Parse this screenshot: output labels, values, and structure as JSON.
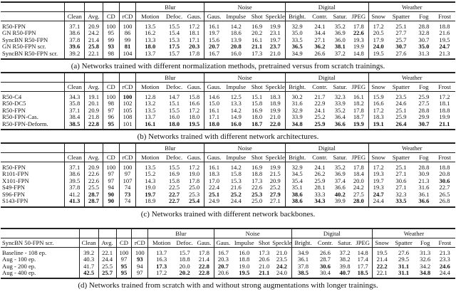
{
  "groups": [
    {
      "label": "Blur",
      "span": 3
    },
    {
      "label": "Noise",
      "span": 4
    },
    {
      "label": "Digital",
      "span": 4
    },
    {
      "label": "Weather",
      "span": 4
    }
  ],
  "columns": [
    "Clean",
    "Avg.",
    "CD",
    "rCD",
    "Motion",
    "Defoc.",
    "Gaus.",
    "Gaus.",
    "Impulse",
    "Shot",
    "Speckle",
    "Bright.",
    "Contr.",
    "Satur.",
    "JPEG",
    "Snow",
    "Spatter",
    "Fog",
    "Frost"
  ],
  "tables": [
    {
      "first_header": "",
      "caption": "(a) Networks trained with different normalization methods, pretrained versus from scratch trainings.",
      "rows": [
        {
          "name": "R50-FPN",
          "values": [
            "37.1",
            "20.9",
            "100",
            "100",
            "13.5",
            "15.5",
            "17.2",
            "16.1",
            "14.2",
            "16.9",
            "19.9",
            "32.9",
            "24.1",
            "35.2",
            "17.8",
            "17.2",
            "25.1",
            "28.8",
            "18.8"
          ],
          "bold": []
        },
        {
          "name": "GN R50-FPN",
          "values": [
            "38.6",
            "24.2",
            "95",
            "86",
            "16.2",
            "15.4",
            "18.1",
            "19.7",
            "18.6",
            "20.2",
            "23.1",
            "35.0",
            "34.4",
            "36.9",
            "22.6",
            "20.5",
            "27.7",
            "32.8",
            "21.6"
          ],
          "bold": [
            14
          ]
        },
        {
          "name": "SyncBN R50-FPN",
          "values": [
            "37.8",
            "21.4",
            "99",
            "99",
            "13.3",
            "15.3",
            "17.1",
            "15.6",
            "13.9",
            "16.1",
            "19.7",
            "33.5",
            "27.1",
            "36.0",
            "19.3",
            "17.9",
            "25.7",
            "30.7",
            "19.5"
          ],
          "bold": []
        },
        {
          "name": "GN R50-FPN scr.",
          "values": [
            "39.6",
            "25.8",
            "93",
            "81",
            "18.0",
            "17.5",
            "20.3",
            "20.7",
            "20.8",
            "21.1",
            "23.7",
            "36.5",
            "36.2",
            "38.1",
            "19.9",
            "24.0",
            "30.7",
            "35.0",
            "24.7"
          ],
          "bold": [
            0,
            1,
            2,
            3,
            4,
            5,
            6,
            7,
            8,
            9,
            10,
            11,
            12,
            13,
            15,
            16,
            17,
            18
          ]
        },
        {
          "name": "SyncBN R50-FPN scr.",
          "values": [
            "39.2",
            "22.1",
            "98",
            "104",
            "13.7",
            "15.7",
            "17.8",
            "16.7",
            "16.0",
            "17.3",
            "21.0",
            "34.9",
            "26.6",
            "37.2",
            "14.8",
            "19.5",
            "27.6",
            "31.3",
            "21.3"
          ],
          "bold": []
        }
      ]
    },
    {
      "first_header": "",
      "caption": "(b) Networks trained with different network architectures.",
      "rows": [
        {
          "name": "R50-C4",
          "values": [
            "34.3",
            "19.1",
            "100",
            "100",
            "12.8",
            "14.7",
            "15.8",
            "14.6",
            "12.5",
            "15.1",
            "18.3",
            "30.2",
            "21.7",
            "32.3",
            "16.1",
            "15.9",
            "23.5",
            "25.9",
            "17.2"
          ],
          "bold": [
            3
          ]
        },
        {
          "name": "R50-DC5",
          "values": [
            "35.8",
            "20.1",
            "98",
            "102",
            "13.2",
            "15.1",
            "16.6",
            "15.0",
            "13.3",
            "15.8",
            "18.9",
            "31.6",
            "22.9",
            "33.9",
            "18.2",
            "16.6",
            "24.6",
            "27.5",
            "18.1"
          ],
          "bold": []
        },
        {
          "name": "R50-FPN",
          "values": [
            "37.1",
            "20.9",
            "97",
            "105",
            "13.5",
            "15.5",
            "17.2",
            "16.1",
            "14.2",
            "16.9",
            "19.9",
            "32.9",
            "24.1",
            "35.2",
            "17.8",
            "17.2",
            "25.1",
            "28.8",
            "18.8"
          ],
          "bold": []
        },
        {
          "name": "R50-FPN-Cas.",
          "values": [
            "38.4",
            "21.8",
            "96",
            "108",
            "13.7",
            "16.0",
            "18.0",
            "17.1",
            "14.9",
            "18.0",
            "21.0",
            "33.9",
            "25.2",
            "36.4",
            "18.7",
            "18.3",
            "25.9",
            "29.9",
            "19.9"
          ],
          "bold": []
        },
        {
          "name": "R50-FPN-Deform.",
          "values": [
            "38.5",
            "22.8",
            "95",
            "101",
            "16.1",
            "18.0",
            "19.5",
            "18.0",
            "16.0",
            "18.7",
            "22.0",
            "34.8",
            "25.9",
            "36.6",
            "19.9",
            "19.1",
            "26.4",
            "30.7",
            "21.1"
          ],
          "bold": [
            0,
            1,
            2,
            4,
            5,
            6,
            7,
            8,
            9,
            10,
            11,
            12,
            13,
            14,
            15,
            16,
            17,
            18
          ]
        }
      ]
    },
    {
      "first_header": "",
      "caption": "(c) Networks trained with different network backbones.",
      "rows": [
        {
          "name": "R50-FPN",
          "values": [
            "37.1",
            "20.9",
            "100",
            "100",
            "13.5",
            "15.5",
            "17.2",
            "16.1",
            "14.2",
            "16.9",
            "19.9",
            "32.9",
            "24.1",
            "35.2",
            "17.8",
            "17.2",
            "25.1",
            "28.8",
            "18.8"
          ],
          "bold": []
        },
        {
          "name": "R101-FPN",
          "values": [
            "38.6",
            "22.6",
            "97",
            "97",
            "15.2",
            "16.9",
            "19.0",
            "18.3",
            "15.8",
            "18.8",
            "21.5",
            "34.5",
            "26.2",
            "36.9",
            "18.4",
            "19.3",
            "27.1",
            "30.9",
            "20.8"
          ],
          "bold": []
        },
        {
          "name": "X101-FPN",
          "values": [
            "39.5",
            "22.6",
            "97",
            "107",
            "14.3",
            "15.8",
            "17.8",
            "17.0",
            "15.3",
            "17.3",
            "20.9",
            "35.4",
            "25.9",
            "37.4",
            "20.0",
            "19.7",
            "30.6",
            "21.3",
            "30.6"
          ],
          "bold": [
            18
          ]
        },
        {
          "name": "S49-FPN",
          "values": [
            "37.8",
            "25.5",
            "94",
            "74",
            "19.0",
            "22.5",
            "25.0",
            "22.4",
            "21.6",
            "22.6",
            "25.2",
            "35.1",
            "28.1",
            "36.6",
            "24.2",
            "19.3",
            "27.1",
            "31.6",
            "22.7"
          ],
          "bold": []
        },
        {
          "name": "S96-FPN",
          "values": [
            "41.2",
            "28.7",
            "90",
            "73",
            "19.7",
            "22.7",
            "25.3",
            "25.1",
            "25.2",
            "25.3",
            "27.9",
            "38.6",
            "33.3",
            "40.2",
            "27.5",
            "24.7",
            "32.3",
            "36.1",
            "26.5"
          ],
          "bold": [
            1,
            2,
            3,
            4,
            5,
            7,
            8,
            9,
            10,
            11,
            13,
            15
          ]
        },
        {
          "name": "S143-FPN",
          "values": [
            "41.3",
            "28.7",
            "90",
            "74",
            "18.9",
            "22.7",
            "25.4",
            "24.9",
            "24.4",
            "25.0",
            "27.1",
            "38.6",
            "34.3",
            "39.9",
            "28.0",
            "24.4",
            "33.5",
            "36.6",
            "26.8"
          ],
          "bold": [
            0,
            1,
            2,
            5,
            6,
            11,
            12,
            14,
            16,
            17
          ]
        }
      ]
    },
    {
      "first_header": "SyncBN 50-FPN scr.",
      "caption": "(d) Networks trained from scratch with and without strong augmentations with longer trainings.",
      "rows": [
        {
          "name": "Baseline - 108 ep.",
          "values": [
            "39.2",
            "22.1",
            "100",
            "100",
            "13.7",
            "15.7",
            "17.8",
            "16.7",
            "16.0",
            "17.3",
            "21.0",
            "34.9",
            "26.6",
            "37.2",
            "14.8",
            "19.5",
            "27.6",
            "31.3",
            "21.3"
          ],
          "bold": []
        },
        {
          "name": "Aug - 100 ep.",
          "values": [
            "40.3",
            "24.4",
            "97",
            "93",
            "16.3",
            "18.8",
            "21.4",
            "20.3",
            "18.8",
            "20.6",
            "23.5",
            "36.1",
            "28.7",
            "38.2",
            "17.4",
            "21.4",
            "29.5",
            "32.6",
            "23.3"
          ],
          "bold": [
            3
          ]
        },
        {
          "name": "Aug - 200 ep.",
          "values": [
            "41.7",
            "25.5",
            "95",
            "94",
            "17.3",
            "20.0",
            "22.8",
            "20.7",
            "19.0",
            "21.0",
            "24.2",
            "37.8",
            "30.6",
            "39.8",
            "17.7",
            "22.2",
            "31.1",
            "34.2",
            "24.6"
          ],
          "bold": [
            2,
            4,
            6,
            7,
            10,
            12,
            15,
            16,
            18
          ]
        },
        {
          "name": "Aug - 400 ep.",
          "values": [
            "42.5",
            "25.7",
            "95",
            "97",
            "17.2",
            "20.2",
            "22.8",
            "20.6",
            "19.5",
            "21.1",
            "24.0",
            "38.5",
            "30.4",
            "40.7",
            "18.5",
            "22.1",
            "31.1",
            "34.8",
            "24.4"
          ],
          "bold": [
            0,
            1,
            2,
            5,
            6,
            8,
            9,
            11,
            13,
            14,
            16,
            17
          ]
        }
      ]
    }
  ]
}
